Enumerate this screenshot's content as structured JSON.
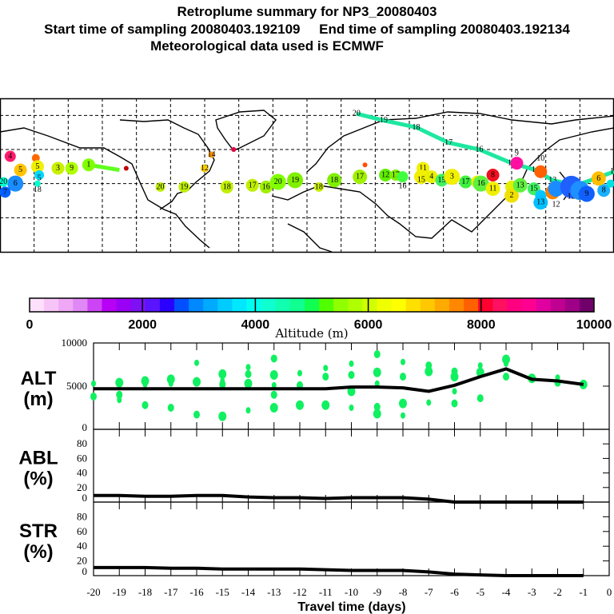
{
  "header": {
    "title": "Retroplume summary for NP3_20080403",
    "sampling": "Start time of sampling 20080403.192109     End time of sampling 20080403.192134",
    "met": "Meteorological data used is ECMWF"
  },
  "map": {
    "lon_range": [
      -180,
      180
    ],
    "lat_range": [
      0,
      90
    ],
    "grid_step_deg": 20,
    "trajectory_color": "#1ee8a0",
    "trajectory": [
      [
        29,
        81
      ],
      [
        45,
        77
      ],
      [
        64,
        73
      ],
      [
        83,
        64
      ],
      [
        101,
        60
      ],
      [
        120,
        52
      ],
      [
        134,
        48
      ],
      [
        144,
        42
      ],
      [
        158,
        39
      ],
      [
        180,
        47
      ]
    ],
    "trajectory_labels": [
      "20",
      "19",
      "18",
      "17",
      "16",
      "15",
      "14",
      "13",
      "11",
      "10"
    ],
    "short_track": [
      [
        -128,
        51
      ],
      [
        -110,
        48
      ]
    ],
    "markers": [
      {
        "lon": -174,
        "lat": 56,
        "c": "#ff1a6e",
        "s": 7,
        "label": "4"
      },
      {
        "lon": -159,
        "lat": 55,
        "c": "#ff6a00",
        "s": 5,
        "label": ""
      },
      {
        "lon": -168,
        "lat": 48,
        "c": "#ffc400",
        "s": 8,
        "label": "5"
      },
      {
        "lon": -158,
        "lat": 50,
        "c": "#f0f000",
        "s": 8,
        "label": "5"
      },
      {
        "lon": -146,
        "lat": 49,
        "c": "#c8f000",
        "s": 8,
        "label": "3"
      },
      {
        "lon": -138,
        "lat": 49,
        "c": "#b0ff00",
        "s": 8,
        "label": "9"
      },
      {
        "lon": -128,
        "lat": 51,
        "c": "#80ff00",
        "s": 8,
        "label": "1"
      },
      {
        "lon": -157,
        "lat": 45,
        "c": "#00d8ff",
        "s": 6,
        "label": "5"
      },
      {
        "lon": -171,
        "lat": 40,
        "c": "#1a8cff",
        "s": 10,
        "label": "6"
      },
      {
        "lon": -177,
        "lat": 35,
        "c": "#0060ff",
        "s": 7,
        "label": "7"
      },
      {
        "lon": -178,
        "lat": 41,
        "c": "#00ffd0",
        "s": 6,
        "label": "20"
      },
      {
        "lon": -158,
        "lat": 40,
        "c": "#00ffd0",
        "s": 4,
        "label": "18"
      },
      {
        "lon": -106,
        "lat": 49,
        "c": "#c00000",
        "s": 3,
        "label": ""
      },
      {
        "lon": -56,
        "lat": 57,
        "c": "#ff9900",
        "s": 4,
        "label": "14"
      },
      {
        "lon": -43,
        "lat": 60,
        "c": "#e00040",
        "s": 3,
        "label": ""
      },
      {
        "lon": -60,
        "lat": 49,
        "c": "#ffd000",
        "s": 5,
        "label": "12"
      },
      {
        "lon": -86,
        "lat": 38,
        "c": "#c0f000",
        "s": 6,
        "label": "20"
      },
      {
        "lon": -72,
        "lat": 38,
        "c": "#c0f000",
        "s": 7,
        "label": "19"
      },
      {
        "lon": -47,
        "lat": 38,
        "c": "#c0f000",
        "s": 8,
        "label": "18"
      },
      {
        "lon": -32,
        "lat": 39,
        "c": "#c0f000",
        "s": 8,
        "label": "17"
      },
      {
        "lon": -24,
        "lat": 38,
        "c": "#a0f000",
        "s": 8,
        "label": "16"
      },
      {
        "lon": -17,
        "lat": 41,
        "c": "#80ff00",
        "s": 10,
        "label": "20"
      },
      {
        "lon": -7,
        "lat": 42,
        "c": "#80f000",
        "s": 10,
        "label": "19"
      },
      {
        "lon": 7,
        "lat": 38,
        "c": "#c8f000",
        "s": 6,
        "label": "18"
      },
      {
        "lon": 16,
        "lat": 42,
        "c": "#80f000",
        "s": 9,
        "label": "18"
      },
      {
        "lon": 31,
        "lat": 44,
        "c": "#a0f000",
        "s": 9,
        "label": "17"
      },
      {
        "lon": 34,
        "lat": 51,
        "c": "#ff5000",
        "s": 3,
        "label": ""
      },
      {
        "lon": 46,
        "lat": 45,
        "c": "#60f000",
        "s": 8,
        "label": "12"
      },
      {
        "lon": 52,
        "lat": 45,
        "c": "#80f000",
        "s": 7,
        "label": "17"
      },
      {
        "lon": 56,
        "lat": 44,
        "c": "#40ff40",
        "s": 7,
        "label": "16"
      },
      {
        "lon": 68,
        "lat": 49,
        "c": "#f0f000",
        "s": 8,
        "label": "11"
      },
      {
        "lon": 67,
        "lat": 44,
        "c": "#f0f000",
        "s": 9,
        "label": "15"
      },
      {
        "lon": 73,
        "lat": 44,
        "c": "#e8f000",
        "s": 8,
        "label": "4"
      },
      {
        "lon": 79,
        "lat": 42,
        "c": "#40f060",
        "s": 8,
        "label": "15"
      },
      {
        "lon": 85,
        "lat": 44,
        "c": "#f0f000",
        "s": 10,
        "label": "3"
      },
      {
        "lon": 93,
        "lat": 41,
        "c": "#40f040",
        "s": 8,
        "label": "17"
      },
      {
        "lon": 100,
        "lat": 41,
        "c": "#f0f000",
        "s": 8,
        "label": ""
      },
      {
        "lon": 102,
        "lat": 40,
        "c": "#60f040",
        "s": 10,
        "label": "16"
      },
      {
        "lon": 109,
        "lat": 37,
        "c": "#f0f000",
        "s": 9,
        "label": "11"
      },
      {
        "lon": 109,
        "lat": 45,
        "c": "#f01020",
        "s": 8,
        "label": "8"
      },
      {
        "lon": 123,
        "lat": 52,
        "c": "#ff10a0",
        "s": 8,
        "label": "9"
      },
      {
        "lon": 120,
        "lat": 38,
        "c": "#e0f000",
        "s": 8,
        "label": ""
      },
      {
        "lon": 120,
        "lat": 33,
        "c": "#f0e000",
        "s": 9,
        "label": "2"
      },
      {
        "lon": 125,
        "lat": 39,
        "c": "#60f040",
        "s": 9,
        "label": "13"
      },
      {
        "lon": 133,
        "lat": 37,
        "c": "#40f060",
        "s": 8,
        "label": "15"
      },
      {
        "lon": 137,
        "lat": 33,
        "c": "#00c8ff",
        "s": 7,
        "label": ""
      },
      {
        "lon": 137,
        "lat": 29,
        "c": "#00c0ff",
        "s": 9,
        "label": "13"
      },
      {
        "lon": 144,
        "lat": 35,
        "c": "#ff8000",
        "s": 9,
        "label": "7"
      },
      {
        "lon": 137,
        "lat": 47,
        "c": "#ff6000",
        "s": 8,
        "label": "10"
      },
      {
        "lon": 146,
        "lat": 37,
        "c": "#1a8cff",
        "s": 10,
        "label": "12"
      },
      {
        "lon": 155,
        "lat": 38,
        "c": "#2060ff",
        "s": 14,
        "label": "12"
      },
      {
        "lon": 160,
        "lat": 36,
        "c": "#1e90ff",
        "s": 12,
        "label": "7"
      },
      {
        "lon": 164,
        "lat": 34,
        "c": "#1060ff",
        "s": 10,
        "label": "9"
      },
      {
        "lon": 174,
        "lat": 36,
        "c": "#1ab0ff",
        "s": 8,
        "label": "8"
      },
      {
        "lon": 171,
        "lat": 43,
        "c": "#ffc000",
        "s": 9,
        "label": "6"
      },
      {
        "lon": 178,
        "lat": 40,
        "c": "#00e0e0",
        "s": 5,
        "label": ""
      }
    ]
  },
  "colorbar": {
    "label": "Altitude (m)",
    "range": [
      0,
      10000
    ],
    "ticks": [
      "0",
      "2000",
      "4000",
      "6000",
      "8000",
      "10000"
    ],
    "colors": [
      "#fde0fb",
      "#f7c4f7",
      "#eea8f5",
      "#e088f5",
      "#cc44f5",
      "#b800f5",
      "#9a00f5",
      "#7e10f5",
      "#5a14ff",
      "#2a00ff",
      "#0050ff",
      "#0088ff",
      "#00aaff",
      "#00ccff",
      "#00e8ff",
      "#00fff0",
      "#10ffd0",
      "#10ffb0",
      "#10ff90",
      "#10ff50",
      "#50ff00",
      "#90ff00",
      "#b0ff00",
      "#d0ff00",
      "#f0ff00",
      "#ffff00",
      "#ffe000",
      "#ffc800",
      "#ffaa00",
      "#ff8800",
      "#ff6000",
      "#ff0030",
      "#ff1060",
      "#ff0080",
      "#ff0090",
      "#e000a0",
      "#c00090",
      "#a00088",
      "#70006a"
    ]
  },
  "chart_data": [
    {
      "type": "line",
      "panel": "ALT",
      "ylabel": "ALT\n(m)",
      "ylabel_lines": [
        "ALT",
        "(m)"
      ],
      "ylim": [
        0,
        10000
      ],
      "yticks": [
        "10000",
        "5000",
        "0"
      ],
      "x": [
        -20,
        -19,
        -18,
        -17,
        -16,
        -15,
        -14,
        -13,
        -12,
        -11,
        -10,
        -9,
        -8,
        -7,
        -6,
        -5,
        -4,
        -3,
        -2,
        -1
      ],
      "values": [
        4700,
        4700,
        4700,
        4700,
        4700,
        4700,
        4700,
        4700,
        4700,
        4700,
        4900,
        4900,
        4800,
        4400,
        5100,
        6100,
        7000,
        5800,
        5600,
        5200
      ],
      "scatter_color": "#10f060",
      "scatter": [
        [
          -20,
          5300
        ],
        [
          -20,
          3800
        ],
        [
          -19,
          5400
        ],
        [
          -19,
          3400
        ],
        [
          -19,
          4000
        ],
        [
          -18,
          5600
        ],
        [
          -18,
          5200
        ],
        [
          -18,
          2800
        ],
        [
          -17,
          5800
        ],
        [
          -17,
          5300
        ],
        [
          -17,
          2500
        ],
        [
          -16,
          5500
        ],
        [
          -16,
          7700
        ],
        [
          -16,
          1700
        ],
        [
          -15,
          6400
        ],
        [
          -15,
          5600
        ],
        [
          -15,
          5200
        ],
        [
          -15,
          1500
        ],
        [
          -14,
          7200
        ],
        [
          -14,
          6400
        ],
        [
          -14,
          5300
        ],
        [
          -14,
          2200
        ],
        [
          -13,
          8200
        ],
        [
          -13,
          6300
        ],
        [
          -13,
          5100
        ],
        [
          -13,
          4000
        ],
        [
          -13,
          2500
        ],
        [
          -12,
          6500
        ],
        [
          -12,
          5100
        ],
        [
          -12,
          2800
        ],
        [
          -11,
          7100
        ],
        [
          -11,
          6100
        ],
        [
          -11,
          2800
        ],
        [
          -10,
          7600
        ],
        [
          -10,
          6300
        ],
        [
          -10,
          4400
        ],
        [
          -10,
          2500
        ],
        [
          -9,
          8700
        ],
        [
          -9,
          6600
        ],
        [
          -9,
          5300
        ],
        [
          -9,
          2600
        ],
        [
          -9,
          1800
        ],
        [
          -8,
          7800
        ],
        [
          -8,
          6100
        ],
        [
          -8,
          3000
        ],
        [
          -8,
          1600
        ],
        [
          -7,
          7400
        ],
        [
          -7,
          6700
        ],
        [
          -7,
          3100
        ],
        [
          -6,
          6700
        ],
        [
          -6,
          6100
        ],
        [
          -6,
          4400
        ],
        [
          -6,
          3000
        ],
        [
          -5,
          6600
        ],
        [
          -5,
          7400
        ],
        [
          -5,
          3600
        ],
        [
          -4,
          8100
        ],
        [
          -4,
          7600
        ],
        [
          -4,
          6100
        ],
        [
          -3,
          5900
        ],
        [
          -2,
          6000
        ],
        [
          -2,
          5400
        ],
        [
          -1,
          5200
        ]
      ]
    },
    {
      "type": "line",
      "panel": "ABL",
      "ylabel_lines": [
        "ABL",
        "(%)"
      ],
      "ylim": [
        0,
        100
      ],
      "yticks": [
        "80",
        "60",
        "40",
        "20",
        "0"
      ],
      "x": [
        -20,
        -19,
        -18,
        -17,
        -16,
        -15,
        -14,
        -13,
        -12,
        -11,
        -10,
        -9,
        -8,
        -7,
        -6,
        -5,
        -4,
        -3,
        -2,
        -1
      ],
      "values": [
        9,
        9,
        8,
        8,
        9,
        9,
        7,
        6,
        6,
        5,
        6,
        6,
        6,
        4,
        0,
        0,
        0,
        0,
        0,
        0
      ]
    },
    {
      "type": "line",
      "panel": "STR",
      "ylabel_lines": [
        "STR",
        "(%)"
      ],
      "ylim": [
        0,
        100
      ],
      "yticks": [
        "80",
        "60",
        "40",
        "20",
        "0"
      ],
      "x": [
        -20,
        -19,
        -18,
        -17,
        -16,
        -15,
        -14,
        -13,
        -12,
        -11,
        -10,
        -9,
        -8,
        -7,
        -6,
        -5,
        -4,
        -3,
        -2,
        -1
      ],
      "values": [
        11,
        11,
        11,
        10,
        10,
        9,
        9,
        9,
        9,
        8,
        7,
        7,
        7,
        5,
        2,
        1,
        0,
        0,
        0,
        0
      ]
    }
  ],
  "xaxis": {
    "label": "Travel time (days)",
    "range": [
      -20,
      0
    ],
    "ticks": [
      "-20",
      "-19",
      "-18",
      "-17",
      "-16",
      "-15",
      "-14",
      "-13",
      "-12",
      "-11",
      "-10",
      "-9",
      "-8",
      "-7",
      "-6",
      "-5",
      "-4",
      "-3",
      "-2",
      "-1",
      "0"
    ]
  }
}
